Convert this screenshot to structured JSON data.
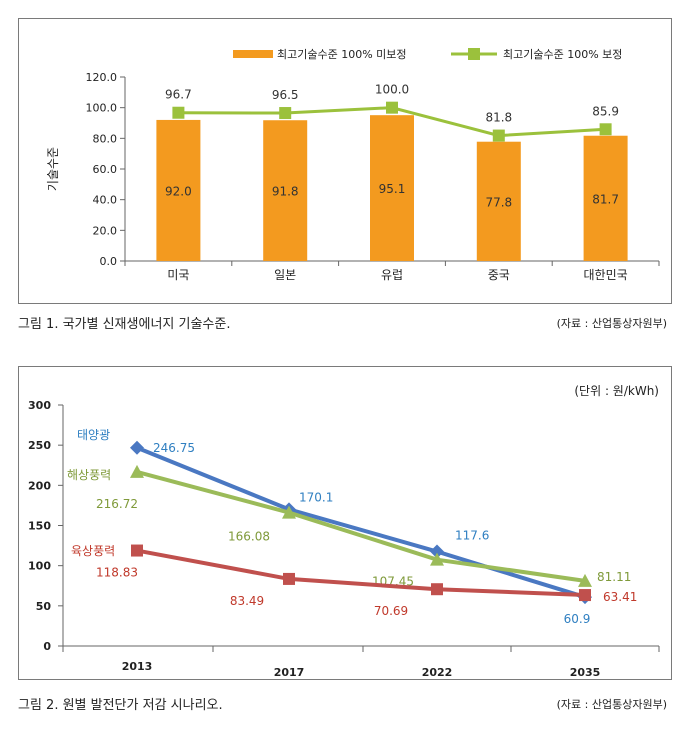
{
  "figure1": {
    "caption": "그림 1. 국가별 신재생에너지 기술수준.",
    "source": "(자료 : 산업통상자원부)",
    "chart_data": {
      "type": "bar",
      "categories": [
        "미국",
        "일본",
        "유럽",
        "중국",
        "대한민국"
      ],
      "series": [
        {
          "name": "최고기술수준 100% 미보정",
          "type": "bar",
          "color": "#f39a1f",
          "values": [
            92.0,
            91.8,
            95.1,
            77.8,
            81.7
          ],
          "labels": [
            "92.0",
            "91.8",
            "95.1",
            "77.8",
            "81.7"
          ]
        },
        {
          "name": "최고기술수준 100% 보정",
          "type": "line",
          "color": "#9bc13c",
          "values": [
            96.7,
            96.5,
            100.0,
            81.8,
            85.9
          ],
          "labels": [
            "96.7",
            "96.5",
            "100.0",
            "81.8",
            "85.9"
          ]
        }
      ],
      "ylabel": "기술수준",
      "ylim": [
        0,
        120
      ],
      "yticks": [
        "0.0",
        "20.0",
        "40.0",
        "60.0",
        "80.0",
        "100.0",
        "120.0"
      ],
      "grid": false,
      "legend": "top-right"
    }
  },
  "figure2": {
    "caption": "그림 2. 원별 발전단가 저감 시나리오.",
    "source": "(자료 : 산업통상자원부)",
    "chart_data": {
      "type": "line",
      "unit_note": "(단위 : 원/kWh)",
      "categories": [
        "2013",
        "2017",
        "2022",
        "2035"
      ],
      "series": [
        {
          "name": "태양광",
          "color": "#4a78c2",
          "label_color": "#2f7fc1",
          "marker": "diamond",
          "values": [
            246.75,
            170.1,
            117.6,
            60.9
          ],
          "labels": [
            "246.75",
            "170.1",
            "117.6",
            "60.9"
          ]
        },
        {
          "name": "해상풍력",
          "color": "#9bbb59",
          "label_color": "#7f9a3a",
          "marker": "triangle",
          "values": [
            216.72,
            166.08,
            107.45,
            81.11
          ],
          "labels": [
            "216.72",
            "166.08",
            "107.45",
            "81.11"
          ]
        },
        {
          "name": "육상풍력",
          "color": "#c0504d",
          "label_color": "#c0392b",
          "marker": "square",
          "values": [
            118.83,
            83.49,
            70.69,
            63.41
          ],
          "labels": [
            "118.83",
            "83.49",
            "70.69",
            "63.41"
          ]
        }
      ],
      "ylim": [
        0,
        300
      ],
      "yticks": [
        "0",
        "50",
        "100",
        "150",
        "200",
        "250",
        "300"
      ],
      "grid": false,
      "legend": "inline-labels"
    }
  }
}
